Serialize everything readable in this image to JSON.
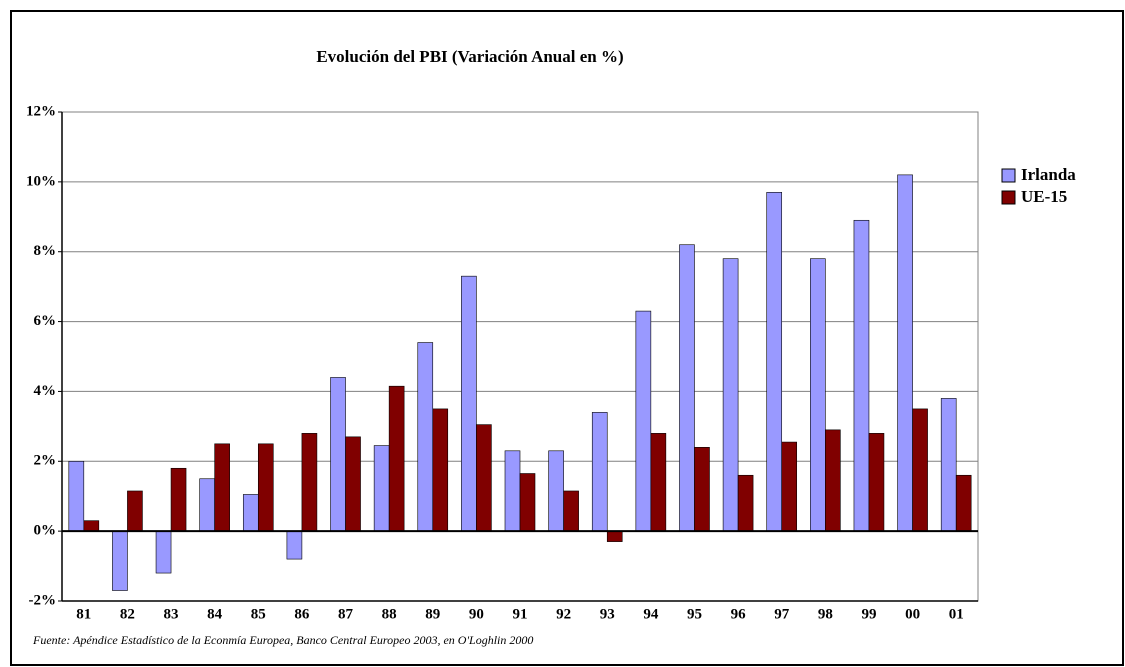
{
  "chart_data": {
    "type": "bar",
    "title": "Evolución del PBI (Variación Anual en %)",
    "source": "Fuente: Apéndice Estadístico de la Econmía Europea, Banco Central Europeo 2003, en O'Loghlin 2000",
    "categories": [
      "81",
      "82",
      "83",
      "84",
      "85",
      "86",
      "87",
      "88",
      "89",
      "90",
      "91",
      "92",
      "93",
      "94",
      "95",
      "96",
      "97",
      "98",
      "99",
      "00",
      "01"
    ],
    "series": [
      {
        "name": "Irlanda",
        "color": "#9999ff",
        "values": [
          2.0,
          -1.7,
          -1.2,
          1.5,
          1.05,
          -0.8,
          4.4,
          2.45,
          5.4,
          7.3,
          2.3,
          2.3,
          3.4,
          6.3,
          8.2,
          7.8,
          9.7,
          7.8,
          8.9,
          10.2,
          3.8
        ]
      },
      {
        "name": "UE-15",
        "color": "#800000",
        "values": [
          0.3,
          1.15,
          1.8,
          2.5,
          2.5,
          2.8,
          2.7,
          4.15,
          3.5,
          3.05,
          1.65,
          1.15,
          -0.3,
          2.8,
          2.4,
          1.6,
          2.55,
          2.9,
          2.8,
          3.5,
          1.6
        ]
      }
    ],
    "ylim": [
      -2,
      12
    ],
    "yticks": [
      {
        "value": -2,
        "label": "-2%"
      },
      {
        "value": 0,
        "label": "0%"
      },
      {
        "value": 2,
        "label": "2%"
      },
      {
        "value": 4,
        "label": "4%"
      },
      {
        "value": 6,
        "label": "6%"
      },
      {
        "value": 8,
        "label": "8%"
      },
      {
        "value": 10,
        "label": "10%"
      },
      {
        "value": 12,
        "label": "12%"
      }
    ],
    "grid": true,
    "legend": "right"
  }
}
